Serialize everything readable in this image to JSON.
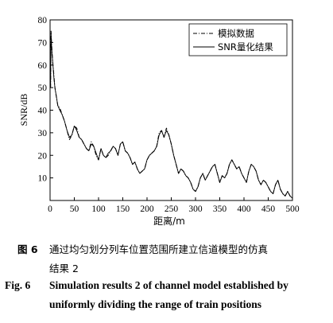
{
  "caption": {
    "cn_label": "图 6",
    "cn_line1": "通过均匀划分列车位置范围所建立信道模型的仿真",
    "cn_line2": "结果 2",
    "en_label": "Fig. 6",
    "en_line1": "Simulation results 2 of channel model established by",
    "en_line2": "uniformly dividing the range of train positions"
  },
  "chart_data": {
    "type": "line",
    "title": "",
    "xlabel": "距离/m",
    "ylabel": "SNR/dB",
    "xlim": [
      0,
      500
    ],
    "ylim": [
      0,
      80
    ],
    "xticks": [
      0,
      50,
      100,
      150,
      200,
      250,
      300,
      350,
      400,
      450,
      500
    ],
    "yticks": [
      10,
      20,
      30,
      40,
      50,
      60,
      70,
      80
    ],
    "grid": false,
    "legend_position": "top-right",
    "series": [
      {
        "name": "模拟数据",
        "style": "dash-dot",
        "color": "#000000",
        "x": [
          1,
          2,
          3,
          4,
          6,
          8,
          10,
          13,
          16,
          20,
          25,
          30,
          35,
          40,
          45,
          50,
          55,
          60,
          65,
          70,
          75,
          80,
          85,
          90,
          95,
          100,
          105,
          110,
          115,
          120,
          125,
          130,
          135,
          140,
          145,
          150,
          155,
          160,
          165,
          170,
          175,
          180,
          185,
          190,
          195,
          200,
          205,
          210,
          215,
          220,
          225,
          230,
          235,
          240,
          245,
          250,
          255,
          260,
          265,
          270,
          275,
          280,
          285,
          290,
          295,
          300,
          305,
          310,
          315,
          320,
          325,
          330,
          335,
          340,
          345,
          350,
          355,
          360,
          365,
          370,
          375,
          380,
          385,
          390,
          395,
          400,
          405,
          410,
          415,
          420,
          425,
          430,
          435,
          440,
          445,
          450,
          455,
          460,
          465,
          470,
          475,
          480,
          485,
          490,
          495,
          500
        ],
        "y": [
          50,
          75,
          70,
          66,
          60,
          55,
          50,
          46,
          42,
          41,
          38,
          35,
          31,
          27,
          29,
          33,
          32,
          28,
          27,
          25,
          23,
          22,
          26,
          24,
          20,
          18,
          23,
          20,
          19,
          20,
          22,
          24,
          23,
          20,
          25,
          26,
          22,
          21,
          19,
          16,
          17,
          14,
          12,
          13,
          14,
          18,
          20,
          21,
          22,
          24,
          30,
          31,
          28,
          32,
          29,
          25,
          20,
          16,
          12,
          14,
          13,
          11,
          10,
          8,
          5,
          4,
          6,
          10,
          12,
          9,
          11,
          13,
          15,
          16,
          12,
          8,
          11,
          10,
          12,
          16,
          18,
          16,
          14,
          15,
          12,
          10,
          8,
          13,
          16,
          15,
          13,
          9,
          7,
          9,
          8,
          6,
          4,
          3,
          7,
          9,
          5,
          3,
          2,
          4,
          2,
          1
        ]
      },
      {
        "name": "SNR量化结果",
        "style": "solid",
        "color": "#000000",
        "x": [
          1,
          2,
          3,
          4,
          6,
          8,
          10,
          13,
          16,
          20,
          25,
          30,
          35,
          40,
          45,
          50,
          55,
          60,
          65,
          70,
          75,
          80,
          85,
          90,
          95,
          100,
          105,
          110,
          115,
          120,
          125,
          130,
          135,
          140,
          145,
          150,
          155,
          160,
          165,
          170,
          175,
          180,
          185,
          190,
          195,
          200,
          205,
          210,
          215,
          220,
          225,
          230,
          235,
          240,
          245,
          250,
          255,
          260,
          265,
          270,
          275,
          280,
          285,
          290,
          295,
          300,
          305,
          310,
          315,
          320,
          325,
          330,
          335,
          340,
          345,
          350,
          355,
          360,
          365,
          370,
          375,
          380,
          385,
          390,
          395,
          400,
          405,
          410,
          415,
          420,
          425,
          430,
          435,
          440,
          445,
          450,
          455,
          460,
          465,
          470,
          475,
          480,
          485,
          490,
          495,
          500
        ],
        "y": [
          50,
          74,
          69,
          65,
          60,
          54,
          50,
          46,
          42,
          40,
          38,
          35,
          31,
          28,
          29,
          33,
          31,
          28,
          27,
          25,
          23,
          22,
          25,
          24,
          21,
          18,
          23,
          20,
          19,
          21,
          22,
          24,
          23,
          20,
          25,
          26,
          22,
          21,
          19,
          16,
          17,
          14,
          12,
          13,
          14,
          18,
          20,
          21,
          22,
          24,
          29,
          31,
          28,
          31,
          29,
          25,
          20,
          16,
          12,
          14,
          13,
          11,
          10,
          8,
          5,
          4,
          6,
          10,
          12,
          9,
          11,
          13,
          15,
          16,
          12,
          8,
          11,
          10,
          12,
          16,
          18,
          16,
          14,
          15,
          12,
          10,
          8,
          13,
          16,
          15,
          13,
          9,
          7,
          9,
          8,
          6,
          4,
          3,
          7,
          9,
          5,
          3,
          2,
          4,
          2,
          1
        ]
      }
    ]
  }
}
